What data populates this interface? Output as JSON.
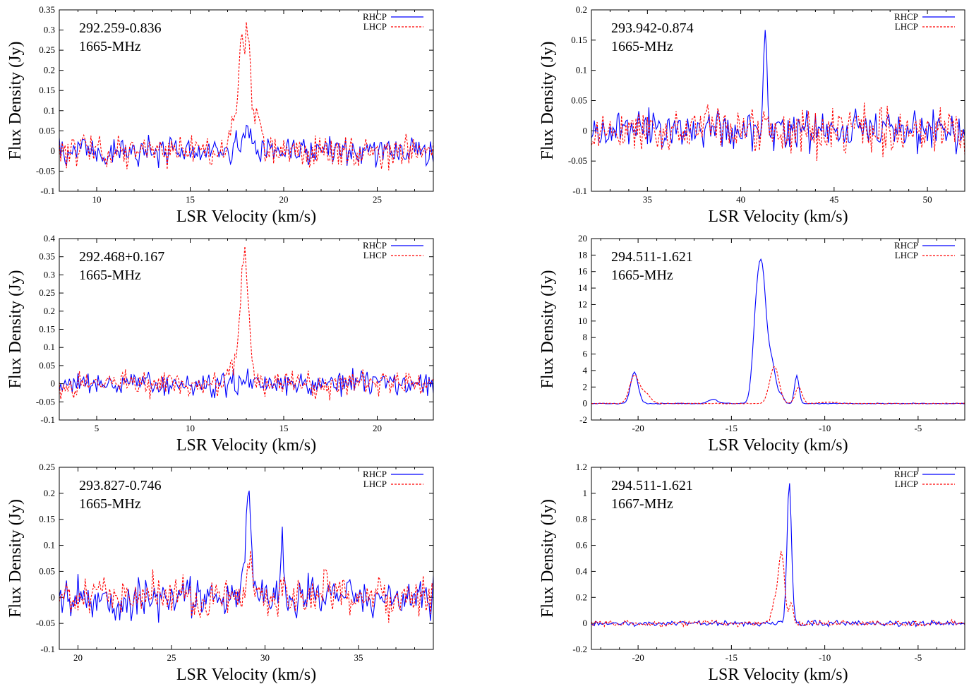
{
  "figure": {
    "legend_labels": [
      "RHCP",
      "LHCP"
    ],
    "xlabel": "LSR Velocity (km/s)",
    "ylabel": "Flux Density (Jy)"
  },
  "colors": {
    "rhcp": "#0000ff",
    "lhcp": "#ff0000"
  },
  "chart_data": [
    {
      "type": "line",
      "title": "292.259-0.836",
      "subtitle": "1665-MHz",
      "xlabel": "LSR Velocity (km/s)",
      "ylabel": "Flux Density (Jy)",
      "xlim": [
        8,
        28
      ],
      "ylim": [
        -0.1,
        0.35
      ],
      "xticks": [
        10,
        15,
        20,
        25
      ],
      "yticks": [
        -0.1,
        -0.05,
        0,
        0.05,
        0.1,
        0.15,
        0.2,
        0.25,
        0.3,
        0.35
      ],
      "legend_position": "top-right",
      "series": [
        {
          "name": "RHCP",
          "style": "solid",
          "noise": 0.035,
          "peaks": [
            [
              18.0,
              0.04,
              0.3
            ]
          ]
        },
        {
          "name": "LHCP",
          "style": "dashed",
          "noise": 0.035,
          "peaks": [
            [
              17.3,
              0.09,
              0.2
            ],
            [
              17.7,
              0.2,
              0.12
            ],
            [
              18.05,
              0.29,
              0.18
            ],
            [
              18.6,
              0.08,
              0.2
            ]
          ]
        }
      ]
    },
    {
      "type": "line",
      "title": "293.942-0.874",
      "subtitle": "1665-MHz",
      "xlabel": "LSR Velocity (km/s)",
      "ylabel": "Flux Density (Jy)",
      "xlim": [
        32,
        52
      ],
      "ylim": [
        -0.1,
        0.2
      ],
      "xticks": [
        35,
        40,
        45,
        50
      ],
      "yticks": [
        -0.1,
        -0.05,
        0,
        0.05,
        0.1,
        0.15,
        0.2
      ],
      "legend_position": "top-right",
      "series": [
        {
          "name": "RHCP",
          "style": "solid",
          "noise": 0.03,
          "peaks": [
            [
              41.3,
              0.19,
              0.1
            ]
          ]
        },
        {
          "name": "LHCP",
          "style": "dashed",
          "noise": 0.035,
          "peaks": [
            [
              38.2,
              0.06,
              0.1
            ]
          ]
        }
      ]
    },
    {
      "type": "line",
      "title": "292.468+0.167",
      "subtitle": "1665-MHz",
      "xlabel": "LSR Velocity (km/s)",
      "ylabel": "Flux Density (Jy)",
      "xlim": [
        3,
        23
      ],
      "ylim": [
        -0.1,
        0.4
      ],
      "xticks": [
        5,
        10,
        15,
        20
      ],
      "yticks": [
        -0.1,
        -0.05,
        0,
        0.05,
        0.1,
        0.15,
        0.2,
        0.25,
        0.3,
        0.35,
        0.4
      ],
      "legend_position": "top-right",
      "series": [
        {
          "name": "RHCP",
          "style": "solid",
          "noise": 0.03,
          "peaks": []
        },
        {
          "name": "LHCP",
          "style": "dashed",
          "noise": 0.03,
          "peaks": [
            [
              12.9,
              0.36,
              0.22
            ],
            [
              12.2,
              0.04,
              0.2
            ]
          ]
        }
      ]
    },
    {
      "type": "line",
      "title": "294.511-1.621",
      "subtitle": "1665-MHz",
      "xlabel": "LSR Velocity (km/s)",
      "ylabel": "Flux Density (Jy)",
      "xlim": [
        -22.5,
        -2.5
      ],
      "ylim": [
        -2,
        20
      ],
      "xticks": [
        -20,
        -15,
        -10,
        -5
      ],
      "yticks": [
        -2,
        0,
        2,
        4,
        6,
        8,
        10,
        12,
        14,
        16,
        18,
        20
      ],
      "legend_position": "top-right",
      "series": [
        {
          "name": "RHCP",
          "style": "solid",
          "noise": 0.05,
          "peaks": [
            [
              -20.2,
              3.8,
              0.2
            ],
            [
              -16.0,
              0.5,
              0.25
            ],
            [
              -13.6,
              13.0,
              0.22
            ],
            [
              -13.3,
              9.5,
              0.18
            ],
            [
              -12.9,
              5.5,
              0.25
            ],
            [
              -12.3,
              0.8,
              0.12
            ],
            [
              -11.5,
              3.4,
              0.12
            ]
          ]
        },
        {
          "name": "LHCP",
          "style": "dashed",
          "noise": 0.05,
          "peaks": [
            [
              -20.2,
              3.4,
              0.25
            ],
            [
              -19.6,
              1.2,
              0.25
            ],
            [
              -12.7,
              4.5,
              0.25
            ],
            [
              -11.4,
              2.0,
              0.18
            ],
            [
              -9.8,
              0.15,
              0.4
            ]
          ]
        }
      ]
    },
    {
      "type": "line",
      "title": "293.827-0.746",
      "subtitle": "1665-MHz",
      "xlabel": "LSR Velocity (km/s)",
      "ylabel": "Flux Density (Jy)",
      "xlim": [
        19,
        39
      ],
      "ylim": [
        -0.1,
        0.25
      ],
      "xticks": [
        20,
        25,
        30,
        35
      ],
      "yticks": [
        -0.1,
        -0.05,
        0,
        0.05,
        0.1,
        0.15,
        0.2,
        0.25
      ],
      "legend_position": "top-right",
      "series": [
        {
          "name": "RHCP",
          "style": "solid",
          "noise": 0.035,
          "peaks": [
            [
              29.1,
              0.2,
              0.15
            ],
            [
              30.9,
              0.13,
              0.07
            ]
          ]
        },
        {
          "name": "LHCP",
          "style": "dashed",
          "noise": 0.035,
          "peaks": [
            [
              29.2,
              0.1,
              0.12
            ],
            [
              33.2,
              0.11,
              0.06
            ]
          ]
        }
      ]
    },
    {
      "type": "line",
      "title": "294.511-1.621",
      "subtitle": "1667-MHz",
      "xlabel": "LSR Velocity (km/s)",
      "ylabel": "Flux Density (Jy)",
      "xlim": [
        -22.5,
        -2.5
      ],
      "ylim": [
        -0.2,
        1.2
      ],
      "xticks": [
        -20,
        -15,
        -10,
        -5
      ],
      "yticks": [
        -0.2,
        0,
        0.2,
        0.4,
        0.6,
        0.8,
        1,
        1.2
      ],
      "legend_position": "top-right",
      "series": [
        {
          "name": "RHCP",
          "style": "solid",
          "noise": 0.018,
          "peaks": [
            [
              -11.9,
              1.08,
              0.12
            ]
          ]
        },
        {
          "name": "LHCP",
          "style": "dashed",
          "noise": 0.02,
          "peaks": [
            [
              -12.3,
              0.48,
              0.15
            ],
            [
              -12.6,
              0.2,
              0.2
            ],
            [
              -11.8,
              0.15,
              0.1
            ]
          ]
        }
      ]
    }
  ]
}
